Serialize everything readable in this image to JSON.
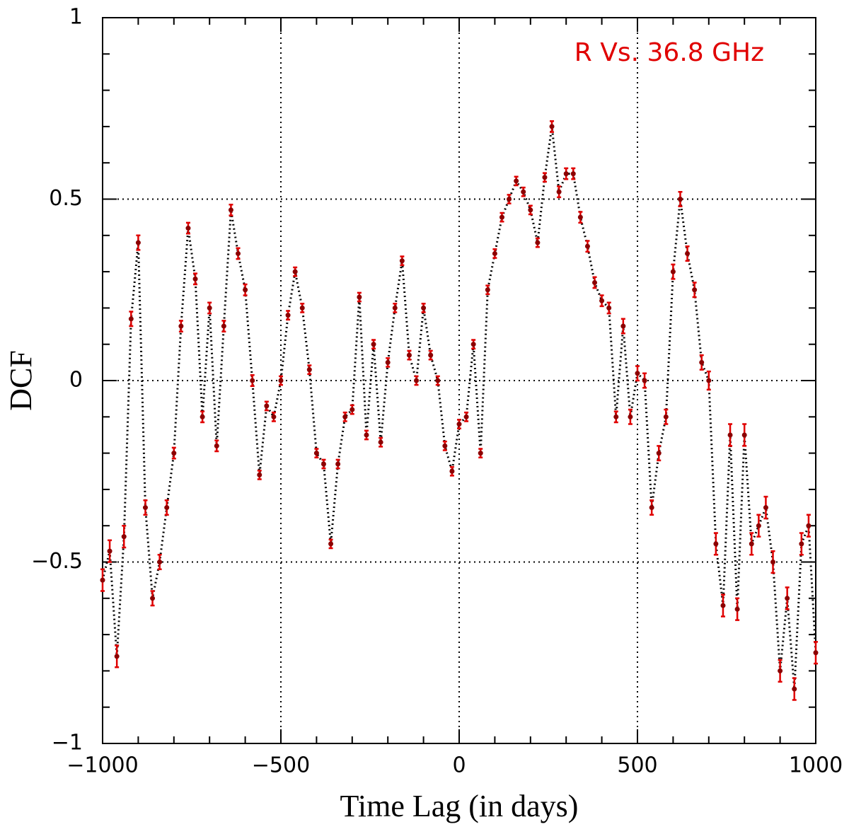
{
  "chart_data": {
    "type": "scatter",
    "annotation": "R Vs. 36.8 GHz",
    "xlabel": "Time Lag (in days)",
    "ylabel": "DCF",
    "xlim": [
      -1000,
      1000
    ],
    "ylim": [
      -1,
      1
    ],
    "xticks": [
      {
        "value": -1000,
        "label": "−1000"
      },
      {
        "value": -500,
        "label": "−500"
      },
      0,
      500,
      1000
    ],
    "yticks": [
      {
        "value": -1,
        "label": "−1"
      },
      {
        "value": -0.5,
        "label": "−0.5"
      },
      0,
      0.5,
      1
    ],
    "xminor": [
      -900,
      -800,
      -700,
      -600,
      -400,
      -300,
      -200,
      -100,
      100,
      200,
      300,
      400,
      600,
      700,
      800,
      900
    ],
    "yminor": [
      -0.9,
      -0.8,
      -0.7,
      -0.6,
      -0.4,
      -0.3,
      -0.2,
      -0.1,
      0.1,
      0.2,
      0.3,
      0.4,
      0.6,
      0.7,
      0.8,
      0.9
    ],
    "grid": true,
    "line_color": "#000000",
    "point_color": "#8b0000",
    "error_color": "#e00000",
    "annotation_color": "#e00000",
    "x": [
      -1000,
      -980,
      -960,
      -940,
      -920,
      -900,
      -880,
      -860,
      -840,
      -820,
      -800,
      -780,
      -760,
      -740,
      -720,
      -700,
      -680,
      -660,
      -640,
      -620,
      -600,
      -580,
      -560,
      -540,
      -520,
      -500,
      -480,
      -460,
      -440,
      -420,
      -400,
      -380,
      -360,
      -340,
      -320,
      -300,
      -280,
      -260,
      -240,
      -220,
      -200,
      -180,
      -160,
      -140,
      -120,
      -100,
      -80,
      -60,
      -40,
      -20,
      0,
      20,
      40,
      60,
      80,
      100,
      120,
      140,
      160,
      180,
      200,
      220,
      240,
      260,
      280,
      300,
      320,
      340,
      360,
      380,
      400,
      420,
      440,
      460,
      480,
      500,
      520,
      540,
      560,
      580,
      600,
      620,
      640,
      660,
      680,
      700,
      720,
      740,
      760,
      780,
      800,
      820,
      840,
      860,
      880,
      900,
      920,
      940,
      960,
      980,
      1000
    ],
    "values": [
      -0.55,
      -0.47,
      -0.76,
      -0.43,
      0.17,
      0.38,
      -0.35,
      -0.6,
      -0.5,
      -0.35,
      -0.2,
      0.15,
      0.42,
      0.28,
      -0.1,
      0.2,
      -0.18,
      0.15,
      0.47,
      0.35,
      0.25,
      0.0,
      -0.26,
      -0.07,
      -0.1,
      0.0,
      0.18,
      0.3,
      0.2,
      0.03,
      -0.2,
      -0.23,
      -0.45,
      -0.23,
      -0.1,
      -0.08,
      0.23,
      -0.15,
      0.1,
      -0.17,
      0.05,
      0.2,
      0.33,
      0.07,
      0.0,
      0.2,
      0.07,
      0.0,
      -0.18,
      -0.25,
      -0.12,
      -0.1,
      0.1,
      -0.2,
      0.25,
      0.35,
      0.45,
      0.5,
      0.55,
      0.52,
      0.47,
      0.38,
      0.56,
      0.7,
      0.52,
      0.57,
      0.57,
      0.45,
      0.37,
      0.27,
      0.22,
      0.2,
      -0.1,
      0.15,
      -0.1,
      0.02,
      0.0,
      -0.35,
      -0.2,
      -0.1,
      0.3,
      0.5,
      0.35,
      0.25,
      0.05,
      0.0,
      -0.45,
      -0.62,
      -0.15,
      -0.63,
      -0.15,
      -0.45,
      -0.4,
      -0.35,
      -0.5,
      -0.8,
      -0.6,
      -0.85,
      -0.45,
      -0.4,
      -0.75
    ],
    "errors": [
      0.03,
      0.03,
      0.03,
      0.03,
      0.02,
      0.02,
      0.02,
      0.02,
      0.02,
      0.02,
      0.015,
      0.015,
      0.015,
      0.015,
      0.015,
      0.015,
      0.015,
      0.015,
      0.015,
      0.015,
      0.015,
      0.015,
      0.012,
      0.012,
      0.012,
      0.012,
      0.012,
      0.012,
      0.012,
      0.012,
      0.012,
      0.012,
      0.012,
      0.012,
      0.012,
      0.012,
      0.012,
      0.012,
      0.012,
      0.012,
      0.012,
      0.012,
      0.012,
      0.012,
      0.012,
      0.012,
      0.012,
      0.012,
      0.012,
      0.012,
      0.012,
      0.012,
      0.012,
      0.012,
      0.012,
      0.012,
      0.012,
      0.012,
      0.012,
      0.012,
      0.012,
      0.012,
      0.012,
      0.015,
      0.015,
      0.015,
      0.015,
      0.015,
      0.015,
      0.015,
      0.015,
      0.015,
      0.015,
      0.02,
      0.02,
      0.02,
      0.02,
      0.02,
      0.02,
      0.02,
      0.02,
      0.02,
      0.02,
      0.02,
      0.02,
      0.025,
      0.03,
      0.03,
      0.03,
      0.03,
      0.03,
      0.03,
      0.03,
      0.03,
      0.03,
      0.03,
      0.03,
      0.03,
      0.03,
      0.03,
      0.03
    ]
  }
}
